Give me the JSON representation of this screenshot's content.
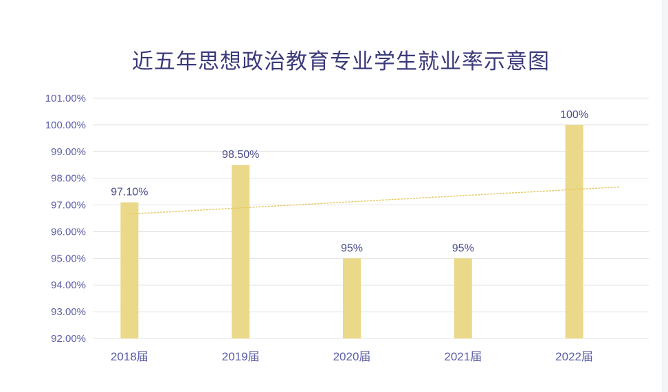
{
  "chart_data": {
    "type": "bar",
    "title": "近五年思想政治教育专业学生就业率示意图",
    "categories": [
      "2018届",
      "2019届",
      "2020届",
      "2021届",
      "2022届"
    ],
    "values": [
      97.1,
      98.5,
      95.0,
      95.0,
      100.0
    ],
    "data_labels": [
      "97.10%",
      "98.50%",
      "95%",
      "95%",
      "100%"
    ],
    "yticks": [
      "92.00%",
      "93.00%",
      "94.00%",
      "95.00%",
      "96.00%",
      "97.00%",
      "98.00%",
      "99.00%",
      "100.00%",
      "101.00%"
    ],
    "ylim": [
      92,
      101
    ],
    "grid": true,
    "trendline": {
      "type": "linear",
      "style": "dotted"
    },
    "colors": {
      "bar": "#ebd98a",
      "trend": "#e6c865",
      "grid": "#e3e3e3",
      "text": "#5b5ea6",
      "title": "#3b3a7a"
    },
    "legend": "none"
  }
}
